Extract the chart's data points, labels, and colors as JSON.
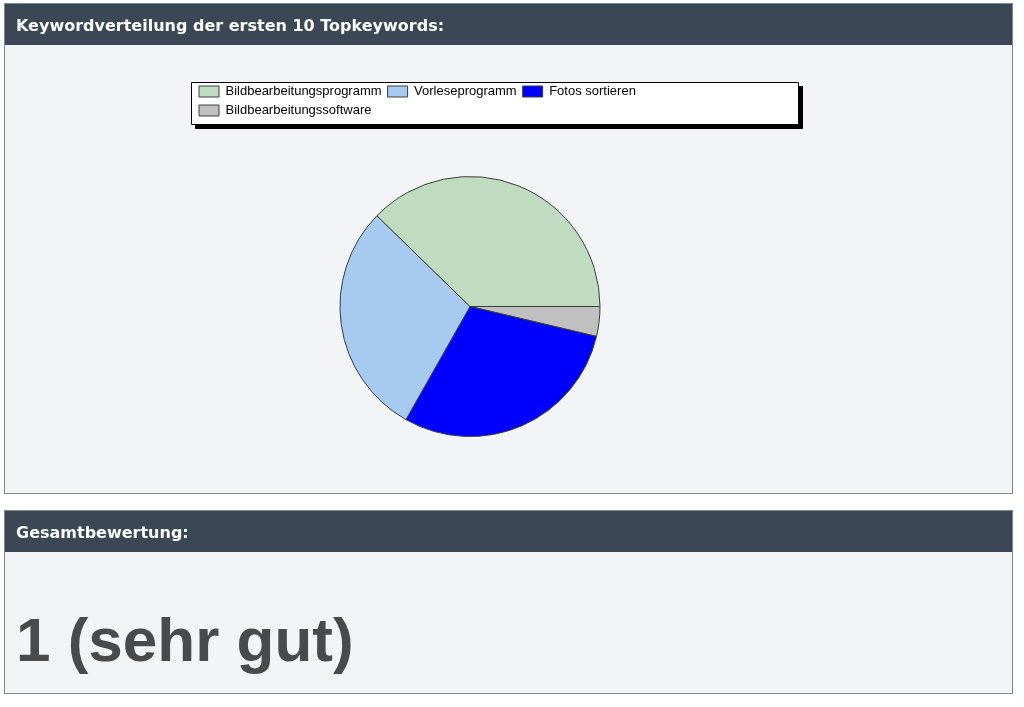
{
  "chart_data": [
    {
      "type": "pie",
      "title": "Keywordverteilung der ersten 10 Topkeywords:",
      "categories": [
        "Bildbearbeitungsprogramm",
        "Vorleseprogramm",
        "Fotos sortieren",
        "Bildbearbeitungssoftware"
      ],
      "values": [
        37.7,
        29.1,
        29.5,
        3.7
      ],
      "colors": [
        "#c0dcc0",
        "#a6caf0",
        "#0000ff",
        "#c0c0c0"
      ],
      "legend": "top"
    },
    {
      "type": "other",
      "title": "Gesamtbewertung:",
      "annotations": [
        "1 (sehr gut)"
      ]
    }
  ]
}
